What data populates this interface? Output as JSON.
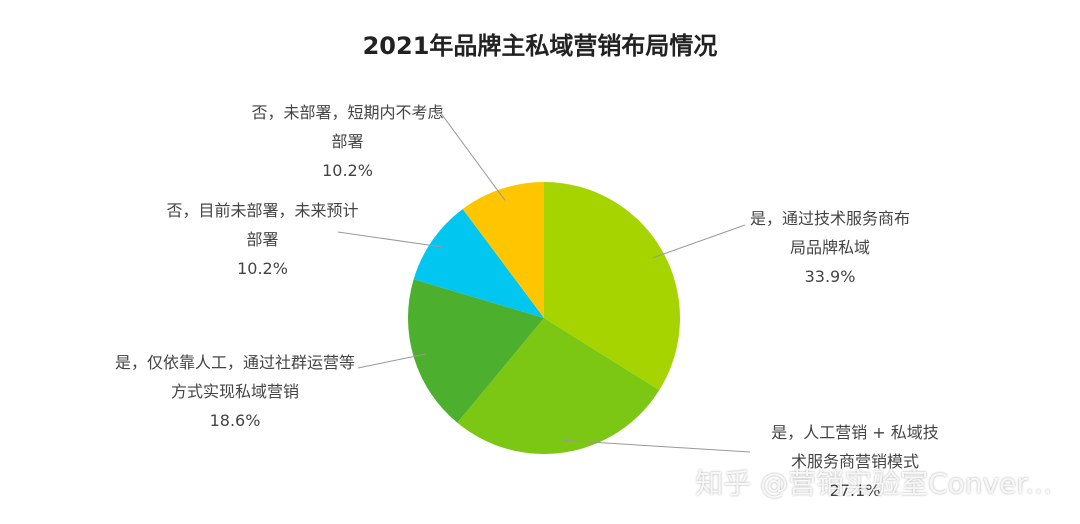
{
  "chart_data": {
    "type": "pie",
    "title": "2021年品牌主私域营销布局情况",
    "categories": [
      "是，通过技术服务商布局品牌私域",
      "是，人工营销 + 私域技术服务商营销模式",
      "是，仅依靠人工，通过社群运营等方式实现私域营销",
      "否，目前未部署，未来预计部署",
      "否，未部署，短期内不考虑部署"
    ],
    "values": [
      33.9,
      27.1,
      18.6,
      10.2,
      10.2
    ],
    "value_labels": [
      "33.9%",
      "27.1%",
      "18.6%",
      "10.2%",
      "10.2%"
    ],
    "colors": [
      "#a6d400",
      "#7cc714",
      "#4caf2e",
      "#00c6f0",
      "#ffc600"
    ],
    "watermark": "知乎 @营销实验室Conver..."
  }
}
